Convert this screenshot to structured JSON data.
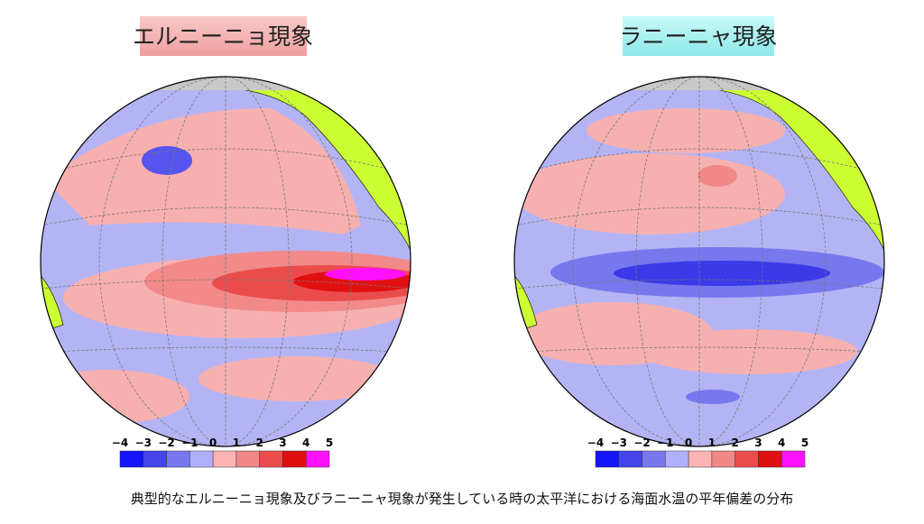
{
  "panels": [
    {
      "title": "エルニーニョ現象",
      "legend": {
        "labels": [
          "−4",
          "−3",
          "−2",
          "−1",
          "0",
          "1",
          "2",
          "3",
          "4",
          "5"
        ],
        "colors": [
          "#1515ff",
          "#4444e8",
          "#7777ee",
          "#b0b0ff",
          "#ffb4b4",
          "#f08888",
          "#ea4c4c",
          "#e01010",
          "#ff10ff"
        ]
      }
    },
    {
      "title": "ラニーニャ現象",
      "legend": {
        "labels": [
          "−4",
          "−3",
          "−2",
          "−1",
          "0",
          "1",
          "2",
          "3",
          "4",
          "5"
        ],
        "colors": [
          "#1515ff",
          "#4444e8",
          "#7777ee",
          "#b0b0ff",
          "#ffb4b4",
          "#f08888",
          "#ea4c4c",
          "#e01010",
          "#ff10ff"
        ]
      }
    }
  ],
  "caption": "典型的なエルニーニョ現象及びラニーニャ現象が発生している時の太平洋における海面水温の平年偏差の分布"
}
